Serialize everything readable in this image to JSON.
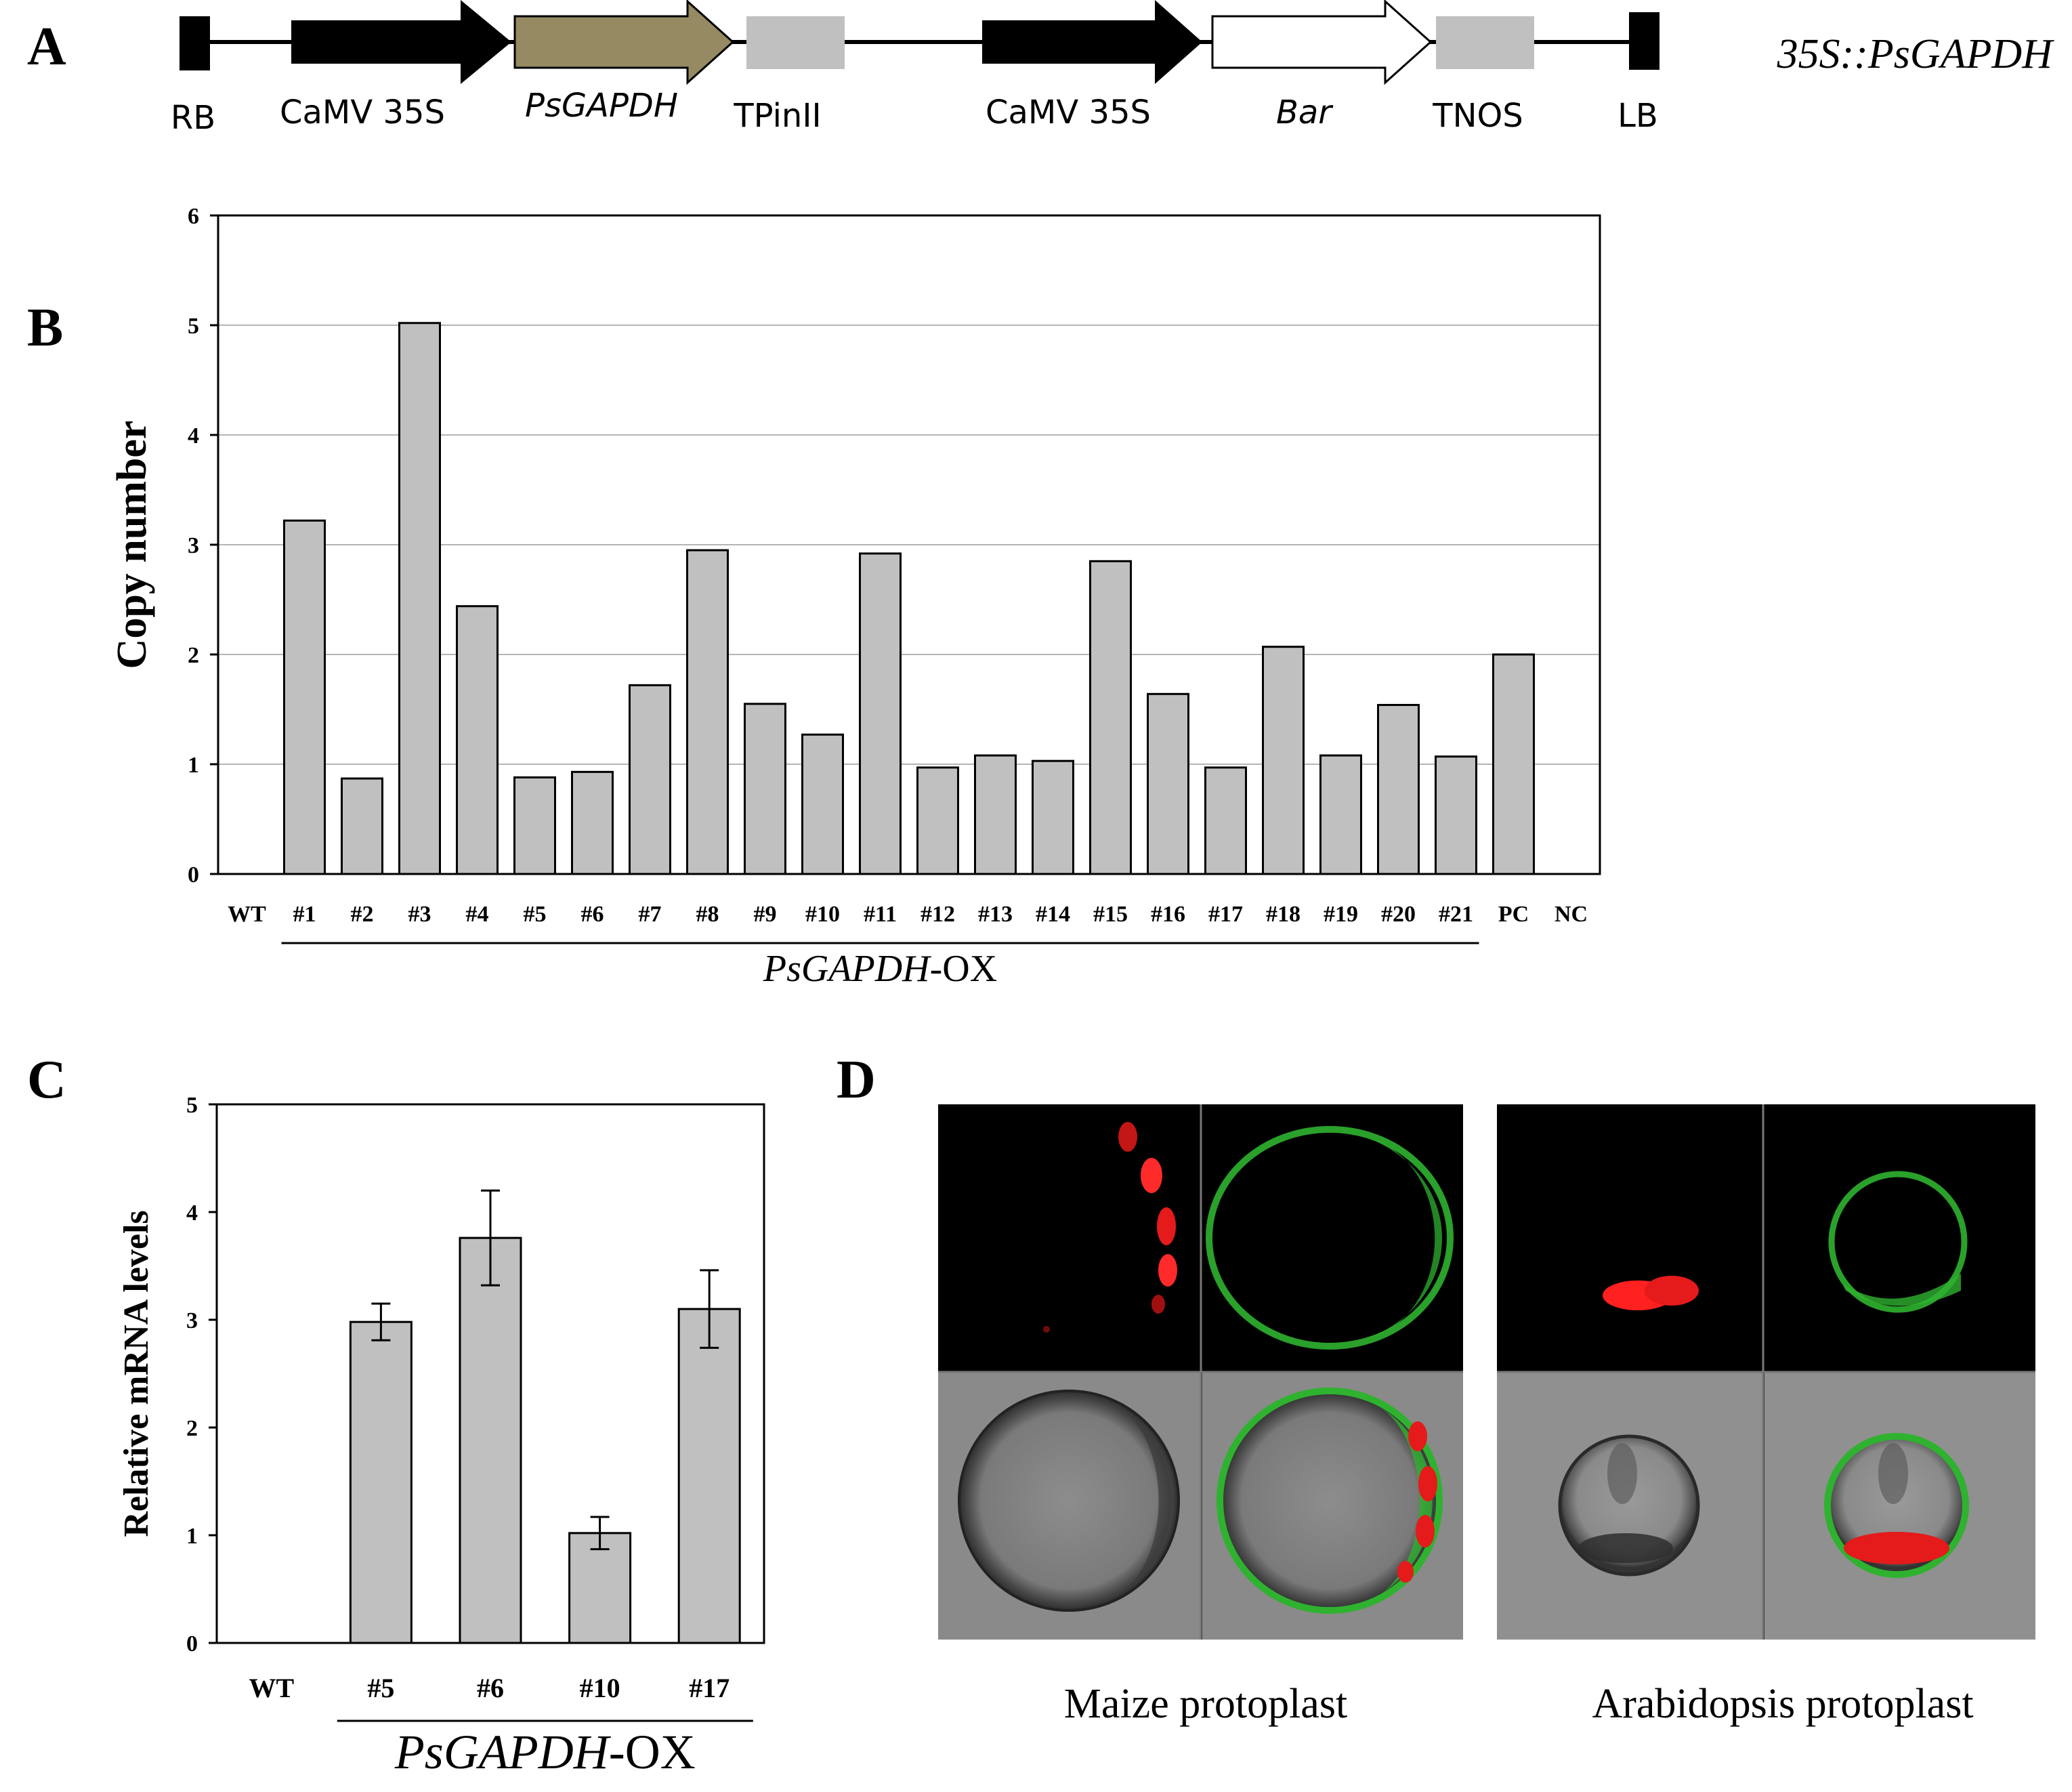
{
  "panel_labels": [
    "A",
    "B",
    "C",
    "D"
  ],
  "construct": {
    "title": "35S::PsGAPDH",
    "elements": [
      "RB",
      "CaMV 35S",
      "PsGAPDH",
      "TPinII",
      "CaMV 35S",
      "Bar",
      "TNOS",
      "LB"
    ]
  },
  "colors": {
    "bar_fill": "#c0c0c0",
    "bar_stroke": "#000000",
    "gene_arrow": "#958a62",
    "terminator": "#c0c0c0",
    "gridline": "#b5b5b5",
    "red_channel": "#e51a1a",
    "green_channel": "#2fb22f"
  },
  "chart_data": [
    {
      "type": "bar",
      "panel": "B",
      "ylabel": "Copy number",
      "xlabel": "",
      "ylim": [
        0,
        6
      ],
      "yticks": [
        0,
        1,
        2,
        3,
        4,
        5,
        6
      ],
      "grid": true,
      "categories": [
        "WT",
        "#1",
        "#2",
        "#3",
        "#4",
        "#5",
        "#6",
        "#7",
        "#8",
        "#9",
        "#10",
        "#11",
        "#12",
        "#13",
        "#14",
        "#15",
        "#16",
        "#17",
        "#18",
        "#19",
        "#20",
        "#21",
        "PC",
        "NC"
      ],
      "values": [
        0,
        3.22,
        0.87,
        5.02,
        2.44,
        0.88,
        0.93,
        1.72,
        2.95,
        1.55,
        1.27,
        2.92,
        0.97,
        1.08,
        1.03,
        2.85,
        1.64,
        0.97,
        2.07,
        1.08,
        1.54,
        1.07,
        2.0,
        0
      ],
      "group_label": "PsGAPDH-OX",
      "group_label_italic": "PsGAPDH",
      "group_label_suffix": "-OX"
    },
    {
      "type": "bar",
      "panel": "C",
      "ylabel": "Relative mRNA levels",
      "xlabel": "",
      "ylim": [
        0,
        5
      ],
      "yticks": [
        0,
        1,
        2,
        3,
        4,
        5
      ],
      "grid": false,
      "categories": [
        "WT",
        "#5",
        "#6",
        "#10",
        "#17"
      ],
      "values": [
        0,
        2.98,
        3.76,
        1.02,
        3.1
      ],
      "errors": [
        0,
        0.17,
        0.44,
        0.15,
        0.36
      ],
      "group_label": "PsGAPDH-OX",
      "group_label_italic": "PsGAPDH",
      "group_label_suffix": "-OX"
    }
  ],
  "panel_d": {
    "captions": [
      "Maize protoplast",
      "Arabidopsis protoplast"
    ]
  }
}
